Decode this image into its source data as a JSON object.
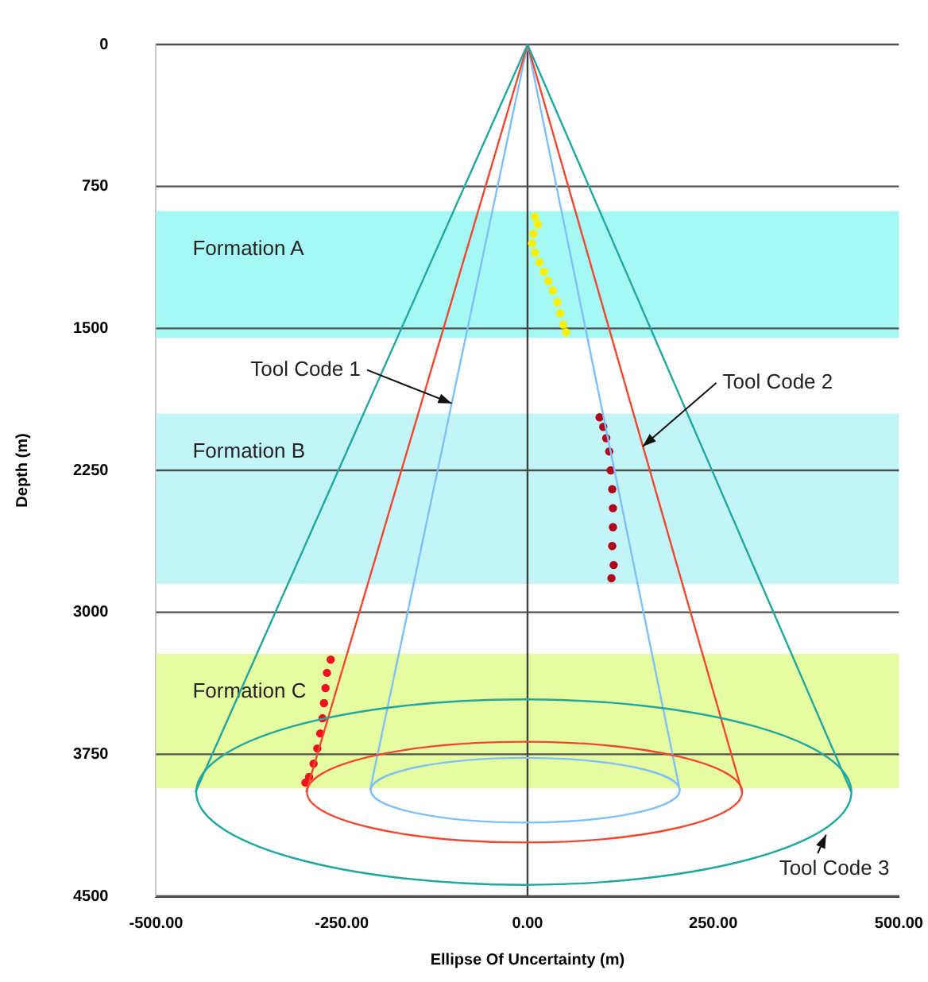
{
  "chart_data": {
    "type": "line",
    "xlabel": "Ellipse Of Uncertainty (m)",
    "ylabel": "Depth (m)",
    "xlim": [
      -500,
      500
    ],
    "xticks": [
      {
        "value": -500,
        "label": "-500.00"
      },
      {
        "value": -250,
        "label": "-250.00"
      },
      {
        "value": 0,
        "label": "0.00"
      },
      {
        "value": 250,
        "label": "250.00"
      },
      {
        "value": 500,
        "label": "500.00"
      }
    ],
    "ylim": [
      4500,
      0
    ],
    "yticks": [
      0,
      750,
      1500,
      2250,
      3000,
      3750,
      4500
    ],
    "grid": "y",
    "legend": false,
    "line_style": "solid",
    "bands": [
      {
        "axis": "y",
        "from": 880,
        "to": 1550,
        "label": "Formation A",
        "color": "#a6f8f4"
      },
      {
        "axis": "y",
        "from": 1950,
        "to": 2850,
        "label": "Formation B",
        "color": "#c2f4f8"
      },
      {
        "axis": "y",
        "from": 3220,
        "to": 3930,
        "label": "Formation C",
        "color": "#e6fca0"
      }
    ],
    "ref_lines": [
      {
        "axis": "x",
        "value": 0,
        "color": "#404040"
      }
    ],
    "annotations": [
      {
        "text": "Tool Code 1",
        "x": -102,
        "y": 1896
      },
      {
        "text": "Tool Code 2",
        "x": 155,
        "y": 2124
      },
      "Tool Code 3"
    ],
    "series": [
      {
        "type": "line",
        "marker": "none",
        "color": "#20a8a0",
        "x": [
          -447,
          0
        ],
        "values": [
          3950,
          0
        ]
      },
      {
        "type": "line",
        "marker": "none",
        "color": "#20a8a0",
        "x": [
          0,
          436
        ],
        "values": [
          0,
          3950
        ]
      },
      {
        "type": "line",
        "marker": "none",
        "color": "#f04830",
        "x": [
          -298,
          0
        ],
        "values": [
          3950,
          0
        ]
      },
      {
        "type": "line",
        "marker": "none",
        "color": "#f04830",
        "x": [
          0,
          289
        ],
        "values": [
          0,
          3950
        ]
      },
      {
        "type": "line",
        "marker": "none",
        "color": "#80c0f8",
        "x": [
          -212,
          0
        ],
        "values": [
          3940,
          0
        ]
      },
      {
        "type": "line",
        "marker": "none",
        "color": "#80c0f8",
        "x": [
          0,
          205
        ],
        "values": [
          0,
          3940
        ]
      },
      {
        "type": "scatter",
        "marker": "circle",
        "color": "#f8f000",
        "x": [
          10,
          14,
          8,
          6,
          10,
          16,
          22,
          28,
          34,
          40,
          44,
          48,
          52
        ],
        "values": [
          910,
          950,
          1000,
          1050,
          1100,
          1150,
          1200,
          1250,
          1300,
          1360,
          1420,
          1480,
          1520
        ]
      },
      {
        "type": "scatter",
        "marker": "circle",
        "color": "#b0001c",
        "x": [
          97,
          102,
          106,
          110,
          112,
          114,
          115,
          115,
          114,
          116,
          113
        ],
        "values": [
          1970,
          2020,
          2080,
          2150,
          2250,
          2350,
          2450,
          2550,
          2650,
          2750,
          2820
        ]
      },
      {
        "type": "scatter",
        "marker": "circle",
        "color": "#f01020",
        "x": [
          -265,
          -270,
          -272,
          -274,
          -276,
          -279,
          -283,
          -288,
          -294,
          -299
        ],
        "values": [
          3250,
          3320,
          3400,
          3480,
          3560,
          3640,
          3720,
          3800,
          3870,
          3900
        ]
      }
    ]
  }
}
